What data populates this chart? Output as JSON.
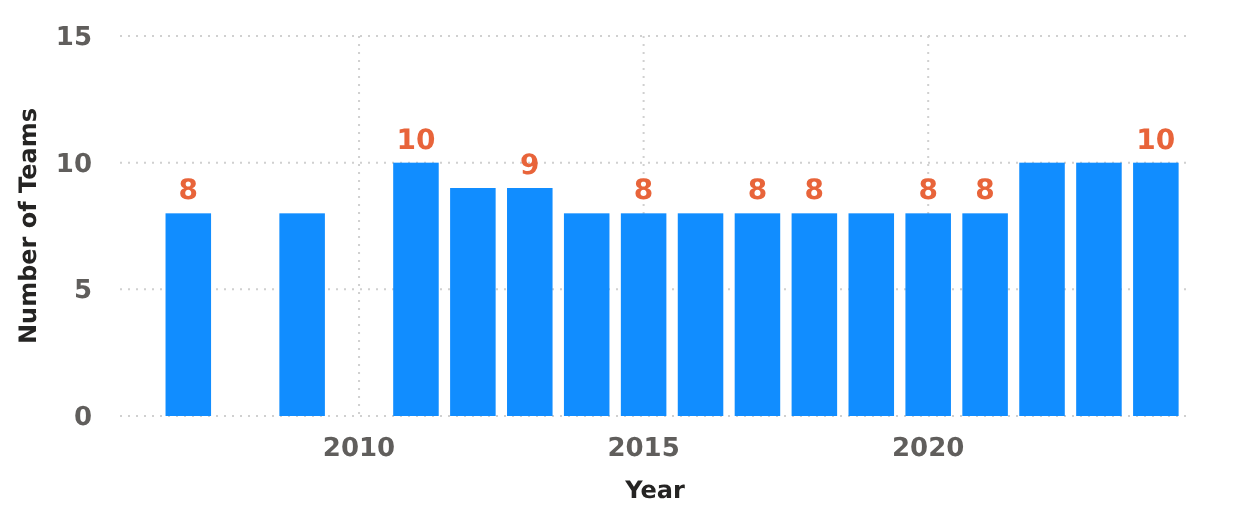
{
  "chart_data": {
    "type": "bar",
    "xlabel": "Year",
    "ylabel": "Number of Teams",
    "x": [
      2007,
      2009,
      2011,
      2012,
      2013,
      2014,
      2015,
      2016,
      2017,
      2018,
      2019,
      2020,
      2021,
      2022,
      2023,
      2024
    ],
    "values": [
      8,
      8,
      10,
      9,
      9,
      8,
      8,
      8,
      8,
      8,
      8,
      8,
      8,
      10,
      10,
      10
    ],
    "value_labels": [
      "8",
      null,
      "10",
      null,
      "9",
      null,
      "8",
      null,
      "8",
      "8",
      null,
      "8",
      "8",
      null,
      null,
      "10"
    ],
    "color": "#118dff",
    "xlim": [
      2005.8,
      2024.6
    ],
    "xticks": [
      2010,
      2015,
      2020
    ],
    "ylim": [
      0,
      15
    ],
    "yticks": [
      0,
      5,
      10,
      15
    ],
    "grid": true
  }
}
